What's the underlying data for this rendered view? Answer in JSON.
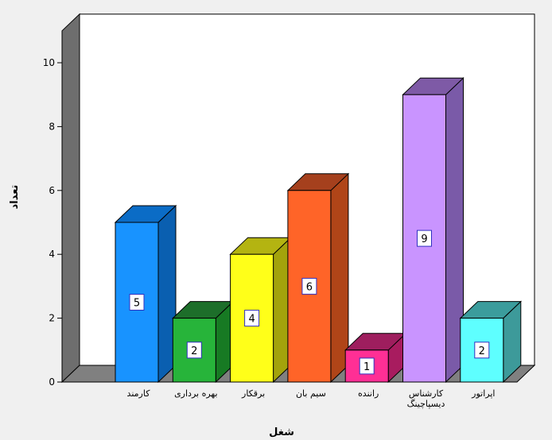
{
  "chart_data": {
    "type": "bar",
    "style": "3d",
    "xlabel": "شغل",
    "ylabel": "تعداد",
    "ylim": [
      0,
      11
    ],
    "yticks": [
      0,
      2,
      4,
      6,
      8,
      10
    ],
    "grid": false,
    "legend": "none",
    "categories": [
      [
        "کارمند"
      ],
      [
        "بهره برداری"
      ],
      [
        "برقکار"
      ],
      [
        "سیم بان"
      ],
      [
        "راننده"
      ],
      [
        "کارشناس",
        "دیسپاچینگ"
      ],
      [
        "اپراتور"
      ]
    ],
    "values": [
      5,
      2,
      4,
      6,
      1,
      9,
      2
    ],
    "data_labels": [
      "5",
      "2",
      "4",
      "6",
      "1",
      "9",
      "2"
    ],
    "colors": [
      {
        "front": "#1893ff",
        "side": "#0a5fb0",
        "top": "#0b6cc6"
      },
      {
        "front": "#27b43a",
        "side": "#177a23",
        "top": "#1d6e2a"
      },
      {
        "front": "#ffff19",
        "side": "#a3a30c",
        "top": "#b4b411"
      },
      {
        "front": "#ff6428",
        "side": "#b04518",
        "top": "#a5401d"
      },
      {
        "front": "#ff2f95",
        "side": "#a81c5f",
        "top": "#9e1e5e"
      },
      {
        "front": "#c994ff",
        "side": "#7a5aa8",
        "top": "#7e5aa6"
      },
      {
        "front": "#5effff",
        "side": "#3d9a9a",
        "top": "#3b9c9c"
      }
    ],
    "plot_background": "#ffffff",
    "wall_color": "#6e6e6e",
    "floor_color": "#808080"
  }
}
